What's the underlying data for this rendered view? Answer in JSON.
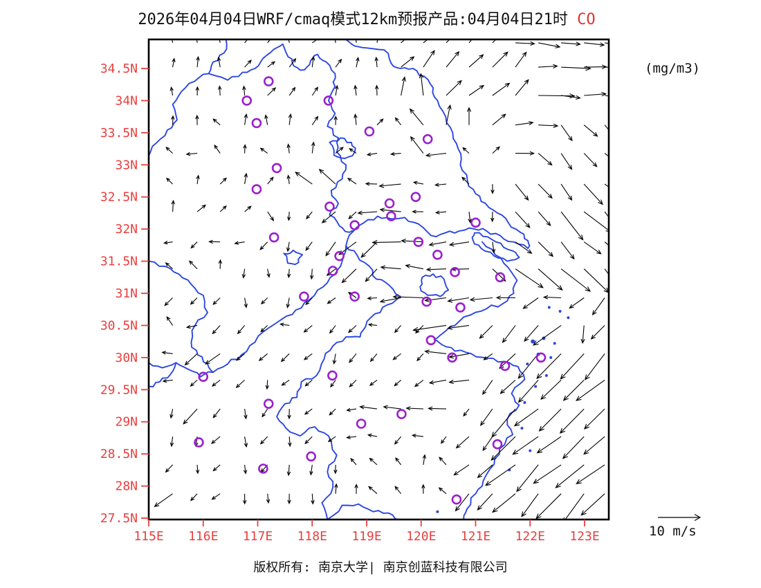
{
  "title": {
    "main": "2026年04月04日WRF/cmaq模式12km预报产品:04月04日21时",
    "pollutant": " CO"
  },
  "units_label": "(mg/m3)",
  "wind_legend": {
    "label": "10 m/s",
    "speed_mps": 10
  },
  "footer": {
    "text": "版权所有: 南京大学| 南京创蓝科技有限公司"
  },
  "colors": {
    "label_red": "#e84040",
    "boundary_blue": "#2b46e0",
    "station_purple": "#9a20cc",
    "arrow_black": "#000000"
  },
  "axes": {
    "y_ticks": [
      "34.5N",
      "34N",
      "33.5N",
      "33N",
      "32.5N",
      "32N",
      "31.5N",
      "31N",
      "30.5N",
      "30N",
      "29.5N",
      "29N",
      "28.5N",
      "28N",
      "27.5N"
    ],
    "x_ticks": [
      "115E",
      "116E",
      "117E",
      "118E",
      "119E",
      "120E",
      "121E",
      "122E",
      "123E"
    ],
    "lon_range": [
      115.0,
      123.44
    ],
    "lat_range": [
      27.48,
      34.95
    ]
  },
  "map_data": {
    "stations": [
      [
        117.2,
        34.3
      ],
      [
        116.8,
        34.0
      ],
      [
        118.3,
        34.0
      ],
      [
        119.05,
        33.52
      ],
      [
        116.98,
        33.65
      ],
      [
        117.35,
        32.95
      ],
      [
        116.98,
        32.62
      ],
      [
        120.12,
        33.4
      ],
      [
        119.9,
        32.5
      ],
      [
        119.42,
        32.4
      ],
      [
        119.45,
        32.2
      ],
      [
        118.32,
        32.35
      ],
      [
        118.78,
        32.06
      ],
      [
        121.0,
        32.1
      ],
      [
        119.95,
        31.8
      ],
      [
        120.3,
        31.6
      ],
      [
        120.62,
        31.33
      ],
      [
        121.45,
        31.25
      ],
      [
        117.3,
        31.87
      ],
      [
        118.5,
        31.58
      ],
      [
        118.38,
        31.35
      ],
      [
        117.85,
        30.95
      ],
      [
        118.78,
        30.95
      ],
      [
        120.1,
        30.87
      ],
      [
        120.72,
        30.78
      ],
      [
        120.18,
        30.27
      ],
      [
        120.57,
        30.0
      ],
      [
        121.54,
        29.87
      ],
      [
        122.2,
        30.0
      ],
      [
        116.0,
        29.7
      ],
      [
        117.2,
        29.28
      ],
      [
        118.37,
        29.72
      ],
      [
        119.64,
        29.12
      ],
      [
        118.9,
        28.97
      ],
      [
        121.4,
        28.65
      ],
      [
        115.92,
        28.68
      ],
      [
        117.1,
        28.27
      ],
      [
        117.98,
        28.46
      ],
      [
        120.65,
        27.79
      ]
    ],
    "wind_grid": {
      "lons": [
        115.44,
        115.89,
        116.31,
        116.76,
        117.18,
        117.58,
        118.0,
        118.43,
        118.81,
        119.19,
        119.63,
        120.04,
        120.46,
        120.88,
        121.31,
        121.73,
        122.15,
        122.57,
        122.99,
        123.37
      ],
      "lats": [
        34.9,
        34.52,
        34.08,
        33.62,
        33.18,
        32.7,
        32.27,
        31.8,
        31.38,
        30.93,
        30.5,
        30.06,
        29.65,
        29.2,
        28.77,
        28.33,
        27.88
      ],
      "rows": [
        "N1 N1 N1 NE1 NE1 N1 NE1 N1 N1 N1 NE1 NE2 NE2 NE2 NE2 E2 E2 E2 E2 E2",
        "N1 N1 N1 NE1 NE1 NE1 N1 NE1 N1 N1 NE2 NE2 NE2 NE2 NE2 NE2 E2 E3 E2 E2",
        "N1 N1 N1 N1 NE1 NE1 NE1 N1 N1 N1 N2 N2 NE2 NE2 NE2 NE2 E3 E2 E2 E2",
        "N1 N1 NW1 N1 N1 N1 NE1 N1 N1 NE1 NW1 NW2 N2 N2 NE2 E2 E2 SE2 SE2 SE2",
        "NW1 W1 NW1 N1 NW1 N1 N1 NE1 NW1 W1 W1 NW2 W2 NW1 NE1 E2 SE2 SE2 SE2 SE2",
        "NW1 N1 NE1 N1 NE1 N1 NW2 NW2 NW1 W1 W2 W1 W1 NW1 S1 SE2 SE2 SE2 SE3 SE3",
        "N1 NE1 NE1 NE1 SE1 S1 SW1 SW2 SW1 W2 W2 W1 W1 S1 S1 SE2 SE2 SE3 SE3 SE3",
        "W1 SW1 W1 W1 SW1 S1 SW1 SW2 SW2 SW2 W3 W2 W2 W2 S1 SE2 SE2 SE2 SE2 SE2",
        "NW1 NW1 N1 S1 S1 S1 S1 SW1 SW2 SW2 W2 W2 W2 W2 SE2 SE3 SE3 SE3 SE3 SE3",
        "SW1 SW1 SW1 S1 SW1 S1 SW1 SW1 NW1 W1 W2 W3 W2 W2 W2 W2 SW2 W2 SW2 SW2",
        "NW1 W1 SW1 SW1 SW1 W1 SW1 SW1 SW1 W1 SW1 SW1 W3 W2 SW2 SW2 SW2 SW3 S2 SW2",
        "W1 SW2 SW2 SW1 SW1 SW1 SW1 S1 SW1 SW1 SW1 SW1 W2 W2 SW1 SW2 SW3 SW3 SW3 SW3",
        "W1 SW1 SW1 SW1 S1 SW1 SW1 SW1 SW1 SW1 SW1 SW1 W2 W2 SW2 SW2 SW3 SW3 SW3 SW3",
        "S1 SW2 SW1 S1 SW1 S1 SW1 SW1 W1 W2 W2 W2 W2 SW1 SW2 SW3 SW3 SW3 SW3 SW3",
        "S1 S1 SW1 S1 SW1 S1 SW1 SW1 W1 W1 SW1 W1 SW1 SW2 SW2 SW3 SW3 SW3 SW3 SW3",
        "SW1 S1 SW1 S1 SW1 S1 S1 S1 NW1 NW1 NW1 N1 NW1 SW2 SW2 SW3 SW3 SW3 SW3 SW3",
        "SW2 SW1 SW1 S1 S1 S1 S1 N1 N1 NW1 NW1 N1 NW1 SW2 SW2 SW3 SW3 SW3 SW3 SW3"
      ]
    },
    "boundaries": [
      [
        [
          116.42,
          34.95
        ],
        [
          116.38,
          34.74
        ],
        [
          116.18,
          34.6
        ],
        [
          116.1,
          34.42
        ],
        [
          116.45,
          34.32
        ],
        [
          116.72,
          34.44
        ],
        [
          116.95,
          34.5
        ],
        [
          117.1,
          34.66
        ],
        [
          117.3,
          34.8
        ],
        [
          117.46,
          34.88
        ],
        [
          117.56,
          34.68
        ],
        [
          117.66,
          34.54
        ],
        [
          117.86,
          34.48
        ],
        [
          117.97,
          34.62
        ],
        [
          118.1,
          34.72
        ],
        [
          118.26,
          34.6
        ],
        [
          118.42,
          34.42
        ],
        [
          118.42,
          34.22
        ]
      ],
      [
        [
          118.62,
          34.95
        ],
        [
          118.78,
          34.85
        ],
        [
          119.0,
          34.82
        ],
        [
          119.32,
          34.79
        ],
        [
          119.45,
          34.58
        ]
      ],
      [
        [
          119.45,
          34.58
        ],
        [
          119.62,
          34.5
        ],
        [
          119.85,
          34.5
        ],
        [
          120.05,
          34.38
        ],
        [
          120.22,
          34.2
        ],
        [
          120.3,
          34.0
        ],
        [
          120.45,
          33.75
        ],
        [
          120.58,
          33.5
        ],
        [
          120.68,
          33.25
        ],
        [
          120.72,
          33.0
        ],
        [
          120.85,
          32.75
        ],
        [
          121.0,
          32.55
        ],
        [
          121.18,
          32.4
        ],
        [
          121.4,
          32.25
        ],
        [
          121.6,
          32.1
        ],
        [
          121.82,
          31.95
        ],
        [
          121.96,
          31.82
        ],
        [
          121.96,
          31.7
        ]
      ],
      [
        [
          121.96,
          31.7
        ],
        [
          121.7,
          31.8
        ],
        [
          121.45,
          31.9
        ],
        [
          121.2,
          31.97
        ],
        [
          120.98,
          32.0
        ]
      ],
      [
        [
          120.98,
          32.0
        ],
        [
          120.7,
          31.97
        ],
        [
          120.44,
          31.94
        ],
        [
          120.18,
          31.9
        ],
        [
          119.95,
          32.08
        ],
        [
          119.7,
          32.18
        ],
        [
          119.45,
          32.16
        ],
        [
          119.2,
          32.2
        ],
        [
          118.95,
          32.1
        ],
        [
          118.76,
          31.97
        ],
        [
          118.62,
          31.74
        ],
        [
          118.55,
          31.5
        ],
        [
          118.42,
          31.3
        ],
        [
          118.2,
          31.1
        ],
        [
          117.95,
          30.9
        ],
        [
          117.7,
          30.74
        ],
        [
          117.45,
          30.6
        ],
        [
          117.2,
          30.46
        ],
        [
          116.95,
          30.24
        ],
        [
          116.7,
          30.04
        ],
        [
          116.45,
          29.9
        ],
        [
          116.18,
          29.77
        ],
        [
          115.95,
          29.7
        ],
        [
          115.72,
          29.82
        ],
        [
          115.5,
          29.92
        ],
        [
          115.25,
          29.84
        ],
        [
          115.0,
          29.92
        ]
      ],
      [
        [
          120.98,
          31.94
        ],
        [
          121.22,
          31.88
        ],
        [
          121.46,
          31.78
        ],
        [
          121.68,
          31.66
        ],
        [
          121.8,
          31.56
        ],
        [
          121.58,
          31.5
        ],
        [
          121.34,
          31.58
        ],
        [
          121.1,
          31.7
        ],
        [
          120.95,
          31.83
        ],
        [
          120.98,
          31.94
        ]
      ],
      [
        [
          121.12,
          31.8
        ],
        [
          121.36,
          31.6
        ],
        [
          121.6,
          31.4
        ],
        [
          121.76,
          31.2
        ],
        [
          121.7,
          31.0
        ],
        [
          121.5,
          30.84
        ],
        [
          121.2,
          30.76
        ],
        [
          120.9,
          30.66
        ],
        [
          120.62,
          30.5
        ],
        [
          120.4,
          30.38
        ],
        [
          120.24,
          30.28
        ],
        [
          120.38,
          30.2
        ],
        [
          120.62,
          30.1
        ],
        [
          120.92,
          30.06
        ],
        [
          121.22,
          29.99
        ],
        [
          121.52,
          29.94
        ],
        [
          121.78,
          29.86
        ],
        [
          121.9,
          29.66
        ],
        [
          121.66,
          29.44
        ],
        [
          121.8,
          29.26
        ],
        [
          121.58,
          29.04
        ],
        [
          121.68,
          28.8
        ],
        [
          121.44,
          28.58
        ],
        [
          121.34,
          28.34
        ],
        [
          121.14,
          28.08
        ],
        [
          121.0,
          27.88
        ],
        [
          120.84,
          27.64
        ],
        [
          120.78,
          27.48
        ]
      ],
      [
        [
          116.1,
          34.42
        ],
        [
          115.84,
          34.3
        ],
        [
          115.6,
          34.14
        ],
        [
          115.44,
          33.94
        ],
        [
          115.52,
          33.7
        ],
        [
          115.34,
          33.54
        ],
        [
          115.14,
          33.34
        ],
        [
          115.0,
          33.14
        ]
      ],
      [
        [
          115.0,
          31.5
        ],
        [
          115.3,
          31.42
        ],
        [
          115.55,
          31.3
        ],
        [
          115.78,
          31.14
        ],
        [
          116.0,
          30.97
        ],
        [
          116.08,
          30.7
        ],
        [
          115.85,
          30.5
        ],
        [
          115.78,
          30.24
        ],
        [
          115.9,
          30.04
        ],
        [
          116.08,
          29.9
        ],
        [
          116.18,
          29.77
        ]
      ],
      [
        [
          115.0,
          29.55
        ],
        [
          115.2,
          29.62
        ],
        [
          115.4,
          29.74
        ],
        [
          115.5,
          29.92
        ]
      ],
      [
        [
          118.42,
          34.22
        ],
        [
          118.3,
          34.0
        ],
        [
          118.42,
          33.8
        ],
        [
          118.28,
          33.6
        ],
        [
          118.48,
          33.42
        ],
        [
          118.45,
          33.2
        ],
        [
          118.62,
          33.0
        ],
        [
          118.55,
          32.78
        ],
        [
          118.35,
          32.6
        ],
        [
          118.48,
          32.4
        ],
        [
          118.32,
          32.22
        ],
        [
          118.5,
          32.05
        ],
        [
          118.68,
          31.95
        ],
        [
          118.76,
          31.97
        ]
      ],
      [
        [
          118.62,
          31.74
        ],
        [
          118.82,
          31.6
        ],
        [
          119.05,
          31.42
        ],
        [
          119.18,
          31.22
        ],
        [
          119.42,
          31.12
        ],
        [
          119.62,
          30.95
        ],
        [
          119.38,
          30.82
        ],
        [
          119.15,
          30.68
        ],
        [
          118.98,
          30.48
        ],
        [
          118.88,
          30.32
        ],
        [
          118.62,
          30.32
        ],
        [
          118.38,
          30.18
        ],
        [
          118.22,
          29.98
        ],
        [
          118.08,
          29.72
        ],
        [
          117.8,
          29.62
        ],
        [
          117.72,
          29.38
        ],
        [
          117.5,
          29.28
        ],
        [
          117.35,
          29.08
        ],
        [
          117.52,
          28.9
        ],
        [
          117.78,
          28.78
        ],
        [
          118.05,
          28.92
        ],
        [
          118.3,
          28.78
        ],
        [
          118.45,
          28.48
        ],
        [
          118.28,
          28.22
        ],
        [
          118.38,
          27.98
        ],
        [
          118.18,
          27.74
        ],
        [
          118.28,
          27.48
        ]
      ],
      [
        [
          118.28,
          27.48
        ],
        [
          118.55,
          27.7
        ],
        [
          118.85,
          27.72
        ],
        [
          119.12,
          27.6
        ],
        [
          119.4,
          27.58
        ],
        [
          119.62,
          27.48
        ]
      ],
      [
        [
          120.02,
          31.25
        ],
        [
          120.22,
          31.3
        ],
        [
          120.42,
          31.22
        ],
        [
          120.5,
          31.05
        ],
        [
          120.35,
          30.95
        ],
        [
          120.12,
          30.97
        ],
        [
          119.98,
          31.1
        ],
        [
          120.02,
          31.25
        ]
      ],
      [
        [
          118.32,
          33.35
        ],
        [
          118.52,
          33.42
        ],
        [
          118.72,
          33.35
        ],
        [
          118.78,
          33.2
        ],
        [
          118.6,
          33.1
        ],
        [
          118.4,
          33.15
        ],
        [
          118.32,
          33.35
        ]
      ],
      [
        [
          117.48,
          31.62
        ],
        [
          117.65,
          31.67
        ],
        [
          117.82,
          31.6
        ],
        [
          117.75,
          31.48
        ],
        [
          117.55,
          31.47
        ],
        [
          117.48,
          31.62
        ]
      ]
    ],
    "islands": [
      [
        122.05,
        30.25,
        3
      ],
      [
        122.25,
        30.3,
        2.5
      ],
      [
        122.45,
        30.22,
        2
      ],
      [
        122.15,
        30.05,
        2.5
      ],
      [
        122.38,
        30.0,
        2
      ],
      [
        121.95,
        29.9,
        2
      ],
      [
        122.3,
        29.72,
        2
      ],
      [
        122.1,
        29.55,
        2
      ],
      [
        121.9,
        29.3,
        2
      ],
      [
        122.55,
        30.72,
        2
      ],
      [
        122.35,
        30.78,
        2
      ],
      [
        122.7,
        30.62,
        2
      ],
      [
        121.85,
        28.9,
        2
      ],
      [
        122.0,
        28.55,
        2
      ],
      [
        121.62,
        28.25,
        2
      ],
      [
        120.3,
        27.6,
        2
      ]
    ]
  }
}
